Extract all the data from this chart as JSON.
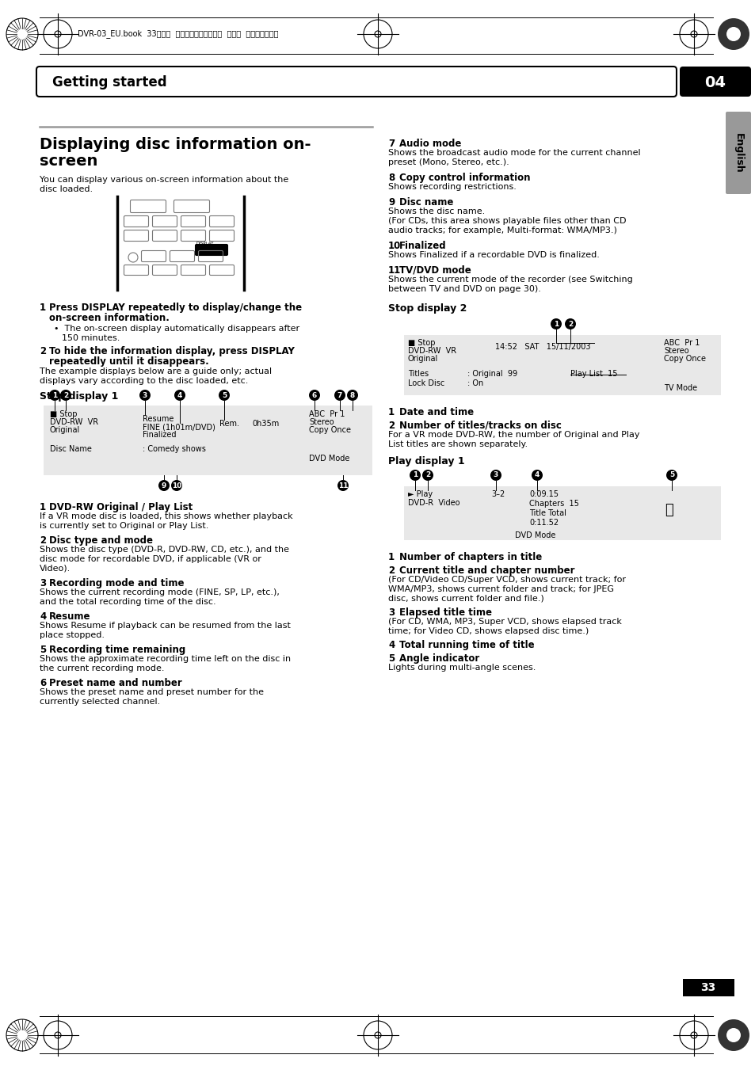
{
  "page_header_text": "DVR-03_EU.book  33ページ  ２００３年７月２８日  月曜日  午後７晏１９分",
  "section_title": "Getting started",
  "chapter_num": "04",
  "english_label": "English",
  "page_num": "33",
  "bg_color": "#ffffff"
}
